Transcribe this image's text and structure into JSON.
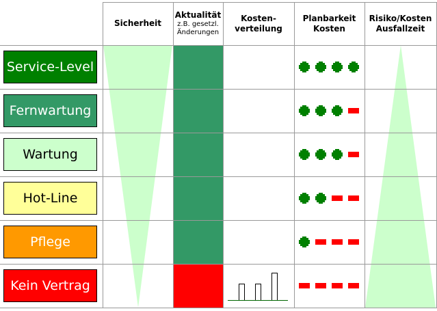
{
  "headers": [
    {
      "title": "Sicherheit"
    },
    {
      "title": "Aktualität",
      "sub1": "z.B. gesetzl.",
      "sub2": "Änderungen"
    },
    {
      "title": "Kosten-",
      "title2": "verteilung"
    },
    {
      "title": "Planbarkeit",
      "title2": "Kosten"
    },
    {
      "title": "Risiko/Kosten",
      "title2": "Ausfallzeit"
    }
  ],
  "rows": [
    {
      "label": "Service-Level",
      "bg": "#008000",
      "fg": "#ffffff",
      "aktualitaet": "#339966",
      "planbarkeit": [
        "plus",
        "plus",
        "plus",
        "plus"
      ]
    },
    {
      "label": "Fernwartung",
      "bg": "#339966",
      "fg": "#ffffff",
      "aktualitaet": "#339966",
      "planbarkeit": [
        "plus",
        "plus",
        "plus",
        "minus"
      ]
    },
    {
      "label": "Wartung",
      "bg": "#ccffcc",
      "fg": "#000000",
      "aktualitaet": "#339966",
      "planbarkeit": [
        "plus",
        "plus",
        "plus",
        "minus"
      ]
    },
    {
      "label": "Hot-Line",
      "bg": "#ffff99",
      "fg": "#000000",
      "aktualitaet": "#339966",
      "planbarkeit": [
        "plus",
        "plus",
        "minus",
        "minus"
      ]
    },
    {
      "label": "Pflege",
      "bg": "#ff9900",
      "fg": "#ffffff",
      "aktualitaet": "#339966",
      "planbarkeit": [
        "plus",
        "minus",
        "minus",
        "minus"
      ]
    },
    {
      "label": "Kein Vertrag",
      "bg": "#ff0000",
      "fg": "#ffffff",
      "aktualitaet": "#ff0000",
      "planbarkeit": [
        "minus",
        "minus",
        "minus",
        "minus"
      ]
    }
  ],
  "colors": {
    "triangle": "#ccffcc",
    "grid": "#999999",
    "plus": "#008000",
    "minus": "#ff0000"
  },
  "icons": {
    "plus": "plus-icon",
    "minus": "minus-icon",
    "cost": "bar-chart-icon"
  }
}
